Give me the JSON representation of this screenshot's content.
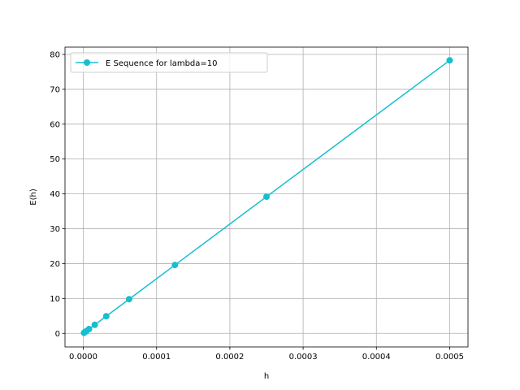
{
  "chart_data": {
    "type": "line",
    "xlabel": "h",
    "ylabel": "E(h)",
    "xlim": [
      -2.5e-05,
      0.000525
    ],
    "ylim": [
      -3.9,
      82.1
    ],
    "xticks": [
      0,
      0.0001,
      0.0002,
      0.0003,
      0.0004,
      0.0005
    ],
    "xtick_labels": [
      "0.0000",
      "0.0001",
      "0.0002",
      "0.0003",
      "0.0004",
      "0.0005"
    ],
    "yticks": [
      0,
      10,
      20,
      30,
      40,
      50,
      60,
      70,
      80
    ],
    "ytick_labels": [
      "0",
      "10",
      "20",
      "30",
      "40",
      "50",
      "60",
      "70",
      "80"
    ],
    "grid": true,
    "legend_position": "upper-left",
    "series": [
      {
        "name": "E Sequence for lambda=10",
        "color": "#17becf",
        "marker": "circle",
        "x": [
          0.0005,
          0.00025,
          0.000125,
          6.25e-05,
          3.125e-05,
          1.5625e-05,
          7.8125e-06,
          3.90625e-06,
          1.953125e-06,
          9.765625e-07
        ],
        "y": [
          78.3,
          39.2,
          19.6,
          9.8,
          4.9,
          2.45,
          1.22,
          0.61,
          0.31,
          0.15
        ]
      }
    ]
  }
}
